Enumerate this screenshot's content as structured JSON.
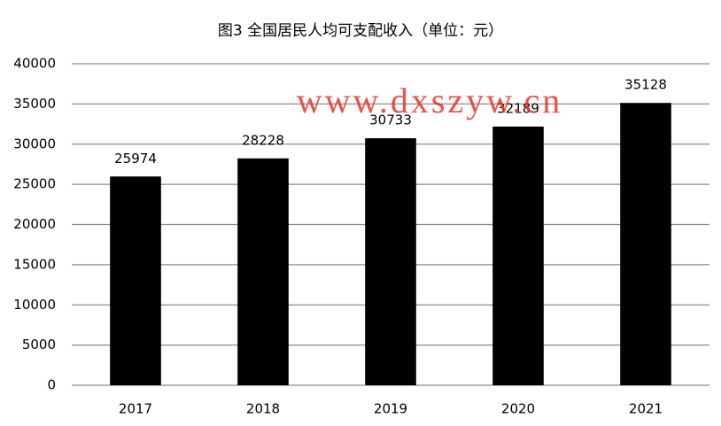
{
  "chart_data": {
    "type": "bar",
    "title": "图3 全国居民人均可支配收入（单位：元）",
    "watermark": "www.dxszyw.cn",
    "categories": [
      "2017",
      "2018",
      "2019",
      "2020",
      "2021"
    ],
    "values": [
      25974,
      28228,
      30733,
      32189,
      35128
    ],
    "color": "#000000",
    "ylim": [
      0,
      40000
    ],
    "yticks": [
      0,
      5000,
      10000,
      15000,
      20000,
      25000,
      30000,
      35000,
      40000
    ],
    "grid": true
  }
}
